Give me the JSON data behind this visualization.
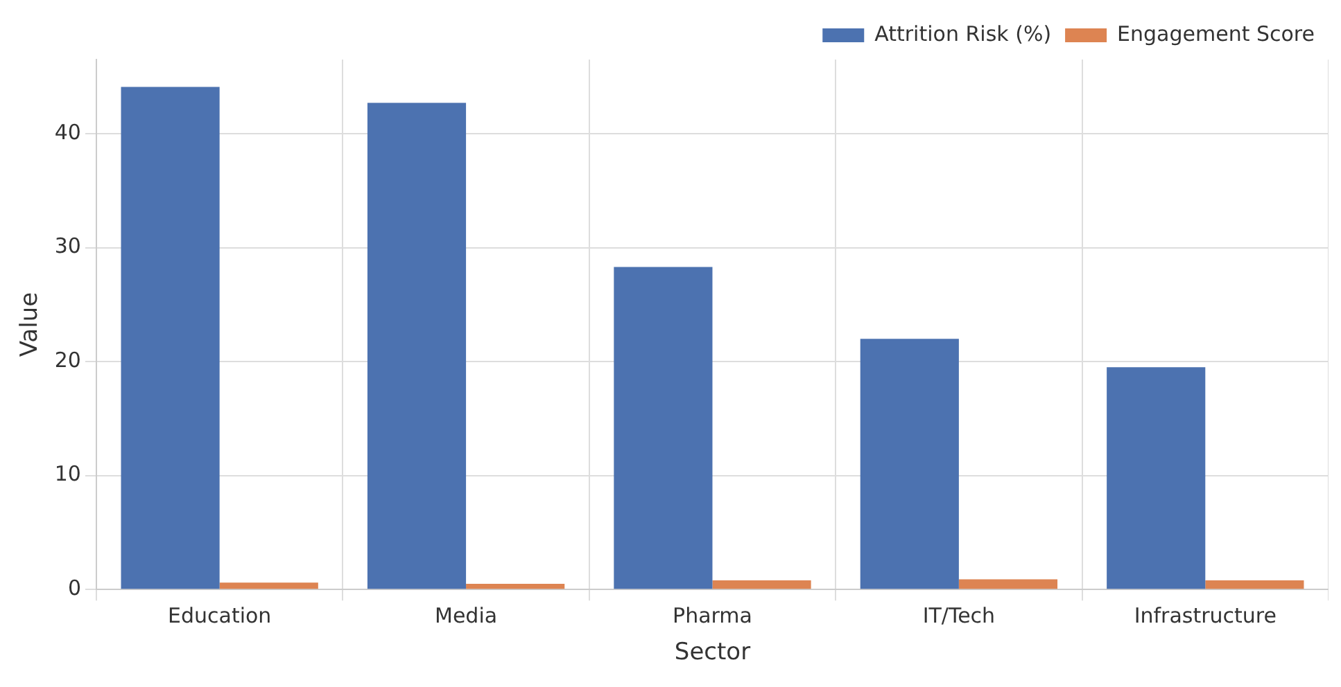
{
  "chart_data": {
    "type": "bar",
    "xlabel": "Sector",
    "ylabel": "Value",
    "categories": [
      "Education",
      "Media",
      "Pharma",
      "IT/Tech",
      "Infrastructure"
    ],
    "series": [
      {
        "name": "Attrition Risk (%)",
        "color": "#4c72b0",
        "values": [
          44.1,
          42.7,
          28.3,
          22.0,
          19.5
        ]
      },
      {
        "name": "Engagement Score",
        "color": "#dd8452",
        "values": [
          0.6,
          0.5,
          0.8,
          0.9,
          0.8
        ]
      }
    ],
    "ylim": [
      0,
      46.5
    ],
    "yticks": [
      0,
      10,
      20,
      30,
      40
    ],
    "grid": true,
    "legend": "top right"
  }
}
